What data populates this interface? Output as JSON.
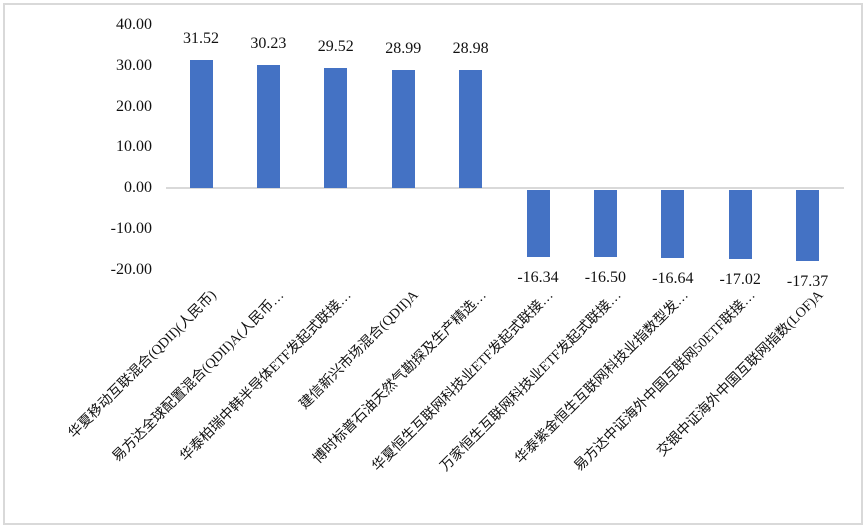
{
  "chart_data": {
    "type": "bar",
    "title": "",
    "xlabel": "",
    "ylabel": "",
    "ylim": [
      -20,
      40
    ],
    "grid": false,
    "legend": false,
    "categories": [
      "华夏移动互联混合(QDII)(人民币)",
      "易方达全球配置混合(QDII)A(人民币…",
      "华泰柏瑞中韩半导体ETF发起式联接…",
      "建信新兴市场混合(QDII)A",
      "博时标普石油天然气勘探及生产精选…",
      "华夏恒生互联网科技业ETF发起式联接…",
      "万家恒生互联网科技业ETF发起式联接…",
      "华泰紫金恒生互联网科技业指数型发…",
      "易方达中证海外中国互联网50ETF联接…",
      "交银中证海外中国互联网指数(LOF)A"
    ],
    "values": [
      31.52,
      30.23,
      29.52,
      28.99,
      28.98,
      -16.34,
      -16.5,
      -16.64,
      -17.02,
      -17.37
    ],
    "value_labels": [
      "31.52",
      "30.23",
      "29.52",
      "28.99",
      "28.98",
      "-16.34",
      "-16.50",
      "-16.64",
      "-17.02",
      "-17.37"
    ],
    "y_axis": {
      "tick_labels": [
        "40.00",
        "30.00",
        "20.00",
        "10.00",
        "0.00",
        "-10.00",
        "-20.00"
      ],
      "tick_values": [
        40,
        30,
        20,
        10,
        0,
        -10,
        -20
      ]
    },
    "colors": {
      "bar": "#4472C4",
      "axis_line": "#D9D9D9",
      "text": "#111111",
      "border": "#D9D9D9"
    }
  }
}
